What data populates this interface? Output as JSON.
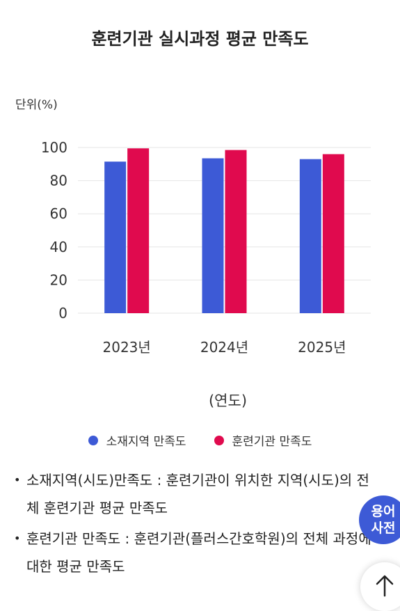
{
  "header": {
    "title": "훈련기관 실시과정 평균 만족도"
  },
  "colors": {
    "series1": "#3d5ad6",
    "series2": "#e00a4e",
    "grid": "#e6e6e6"
  },
  "chart_data": {
    "type": "bar",
    "unit_label": "단위(%)",
    "xlabel": "(연도)",
    "categories": [
      "2023년",
      "2024년",
      "2025년"
    ],
    "ylim": [
      0,
      100
    ],
    "yticks": [
      "0",
      "20",
      "40",
      "60",
      "80",
      "100"
    ],
    "grid": true,
    "legend_position": "bottom",
    "series": [
      {
        "name": "소재지역 만족도",
        "values": [
          91.5,
          93.5,
          93
        ]
      },
      {
        "name": "훈련기관 만족도",
        "values": [
          99.5,
          98.5,
          96
        ]
      }
    ]
  },
  "notes": [
    "소재지역(시도)만족도 : 훈련기관이 위치한 지역(시도)의 전체 훈련기관 평균 만족도",
    "훈련기관 만족도 : 훈련기관(플러스간호학원)의 전체 과정에 대한 평균 만족도"
  ],
  "buttons": {
    "glossary_line1": "용어",
    "glossary_line2": "사전",
    "scroll_top_icon": "arrow-up-icon"
  }
}
